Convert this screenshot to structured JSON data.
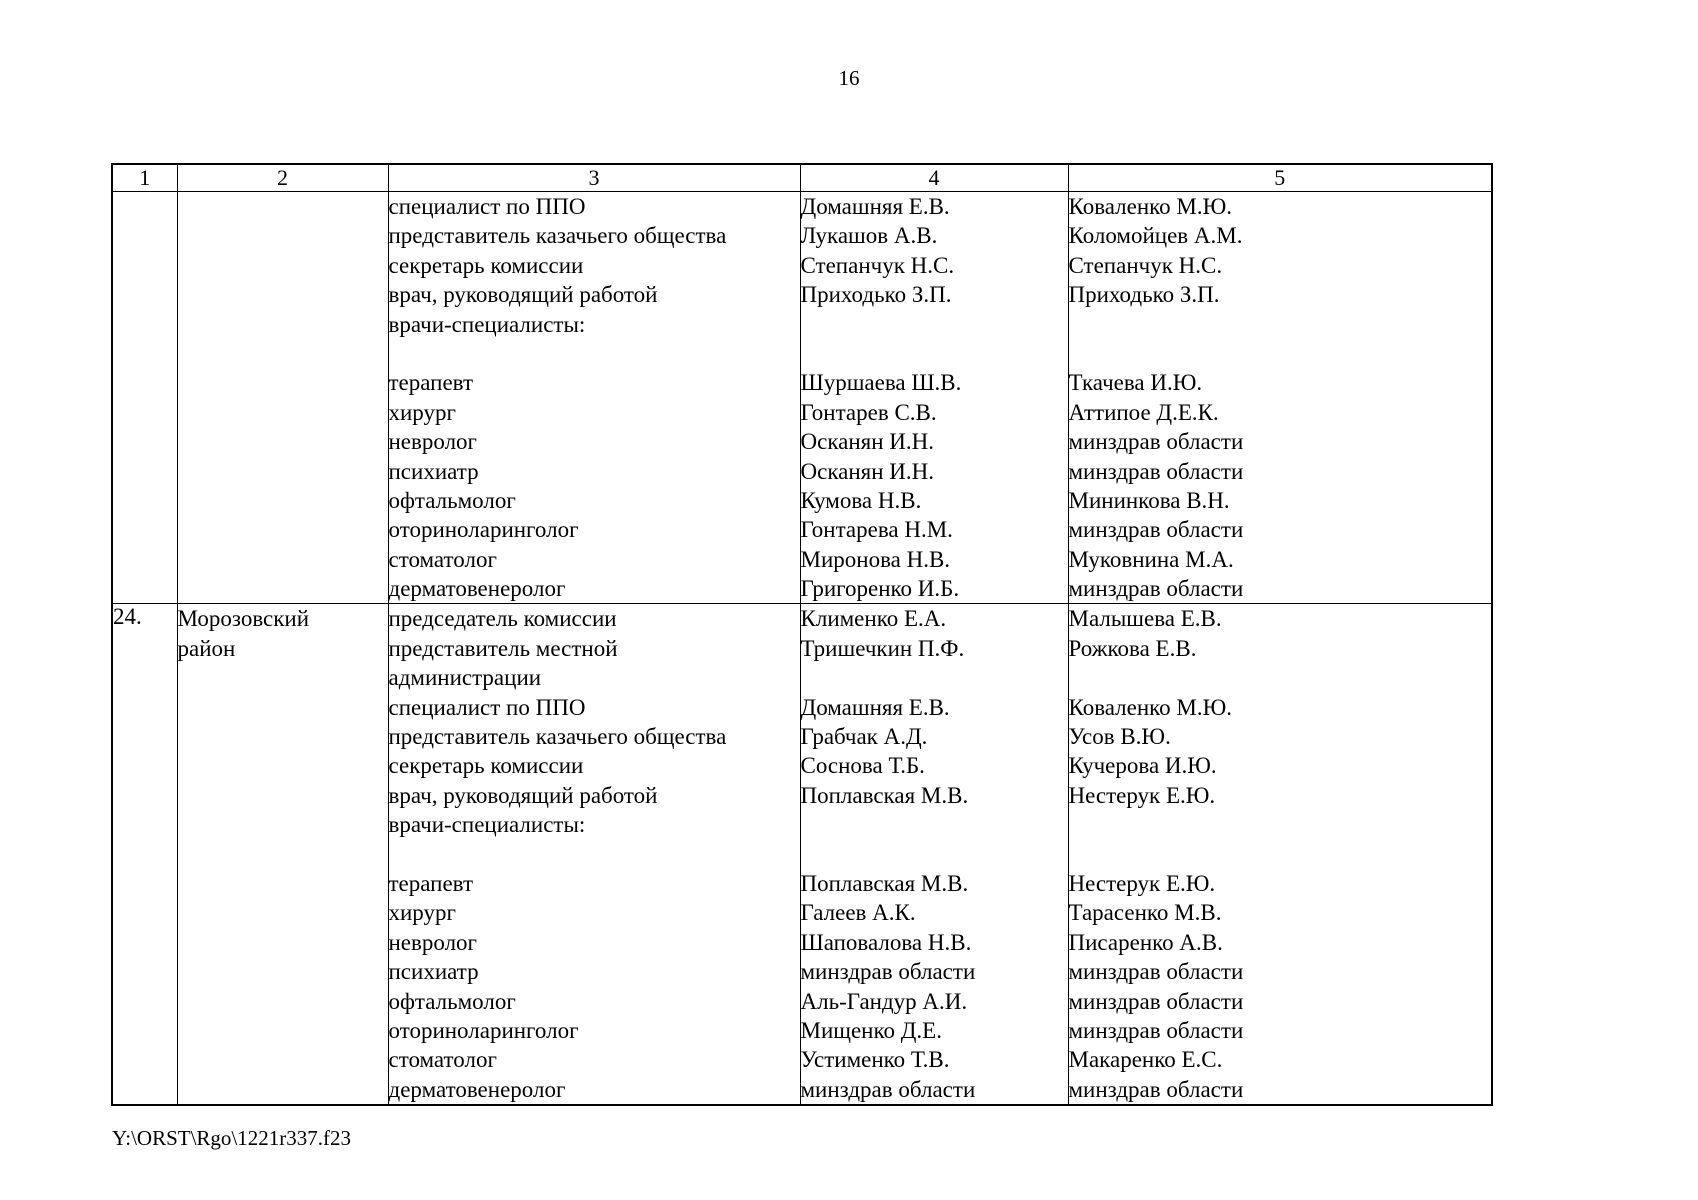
{
  "page": {
    "number": "16",
    "footer_path": "Y:\\ORST\\Rgo\\1221r337.f23"
  },
  "table": {
    "column_headers": [
      "1",
      "2",
      "3",
      "4",
      "5"
    ],
    "rows": [
      {
        "num": "",
        "territory": [],
        "roles": [
          "специалист по ППО",
          "представитель казачьего общества",
          "секретарь комиссии",
          "врач, руководящий работой",
          "врачи-специалисты:",
          "",
          "терапевт",
          "хирург",
          "невролог",
          "психиатр",
          "офтальмолог",
          "оториноларинголог",
          "стоматолог",
          "дерматовенеролог"
        ],
        "members": [
          "Домашняя Е.В.",
          "Лукашов А.В.",
          "Степанчук Н.С.",
          "Приходько З.П.",
          "",
          "",
          "Шуршаева Ш.В.",
          "Гонтарев С.В.",
          "Осканян И.Н.",
          "Осканян И.Н.",
          "Кумова Н.В.",
          "Гонтарева Н.М.",
          "Миронова Н.В.",
          "Григоренко И.Б."
        ],
        "reserve": [
          "Коваленко М.Ю.",
          "Коломойцев А.М.",
          "Степанчук Н.С.",
          "Приходько З.П.",
          "",
          "",
          "Ткачева И.Ю.",
          "Аттипое Д.Е.К.",
          "минздрав области",
          "минздрав области",
          "Мининкова В.Н.",
          "минздрав области",
          "Муковнина М.А.",
          "минздрав области"
        ]
      },
      {
        "num": "24.",
        "territory": [
          "Морозовский",
          "район"
        ],
        "roles": [
          "председатель комиссии",
          "представитель местной",
          "администрации",
          "специалист по ППО",
          "представитель казачьего общества",
          "секретарь комиссии",
          "врач, руководящий работой",
          "врачи-специалисты:",
          "",
          "терапевт",
          "хирург",
          "невролог",
          "психиатр",
          "офтальмолог",
          "оториноларинголог",
          "стоматолог",
          "дерматовенеролог"
        ],
        "members": [
          "Клименко Е.А.",
          "Тришечкин П.Ф.",
          "",
          "Домашняя Е.В.",
          "Грабчак А.Д.",
          "Соснова Т.Б.",
          "Поплавская М.В.",
          "",
          "",
          "Поплавская М.В.",
          "Галеев А.К.",
          "Шаповалова Н.В.",
          "минздрав области",
          "Аль-Гандур А.И.",
          "Мищенко Д.Е.",
          "Устименко Т.В.",
          "минздрав области"
        ],
        "reserve": [
          "Малышева Е.В.",
          "Рожкова Е.В.",
          "",
          "Коваленко М.Ю.",
          "Усов В.Ю.",
          "Кучерова И.Ю.",
          "Нестерук Е.Ю.",
          "",
          "",
          "Нестерук Е.Ю.",
          "Тарасенко М.В.",
          "Писаренко А.В.",
          "минздрав области",
          "минздрав области",
          "минздрав области",
          "Макаренко Е.С.",
          "минздрав области"
        ]
      }
    ]
  }
}
